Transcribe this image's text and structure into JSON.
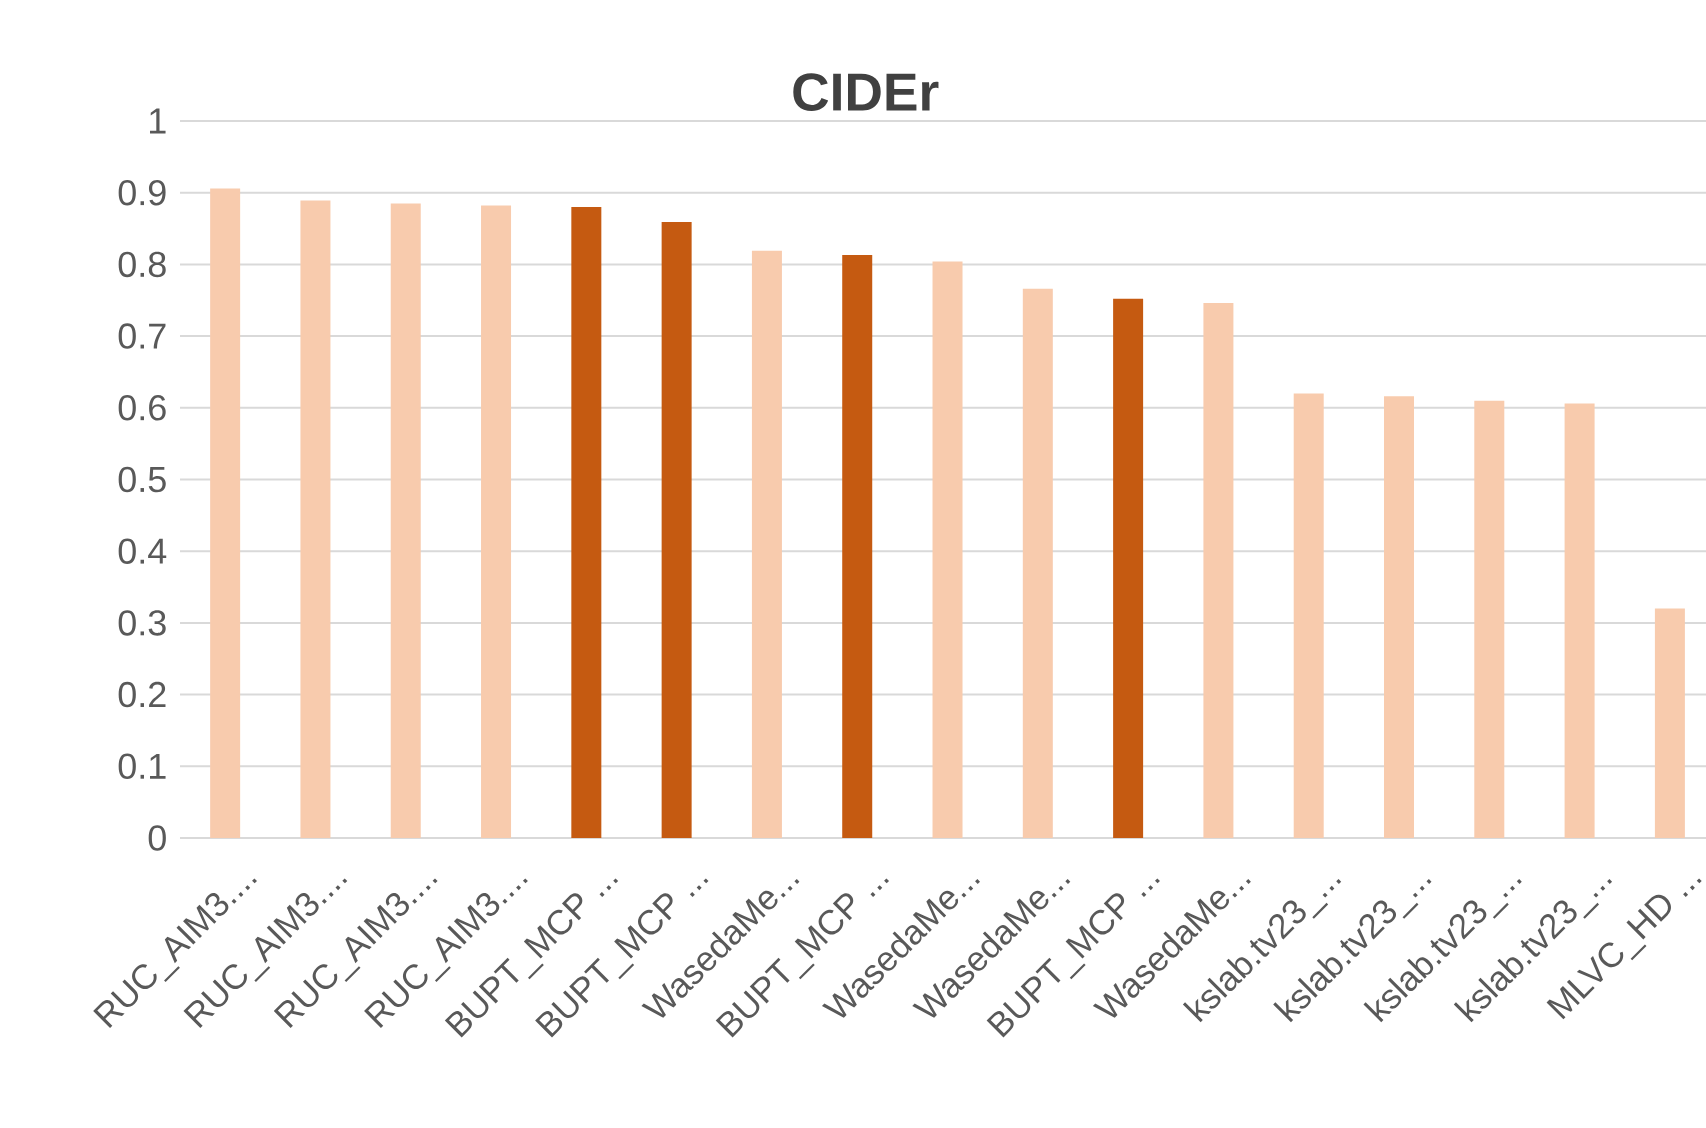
{
  "chart_data": {
    "type": "bar",
    "title": "CIDEr",
    "categories": [
      "RUC_AIM3....",
      "RUC_AIM3....",
      "RUC_AIM3....",
      "RUC_AIM3....",
      "BUPT_MCP ...",
      "BUPT_MCP ...",
      "WasedaMe...",
      "BUPT_MCP ...",
      "WasedaMe...",
      "WasedaMe...",
      "BUPT_MCP ...",
      "WasedaMe...",
      "kslab.tv23_...",
      "kslab.tv23_...",
      "kslab.tv23_...",
      "kslab.tv23_...",
      "MLVC_HD ..."
    ],
    "values": [
      0.906,
      0.889,
      0.885,
      0.882,
      0.88,
      0.859,
      0.819,
      0.813,
      0.804,
      0.766,
      0.752,
      0.746,
      0.62,
      0.616,
      0.61,
      0.606,
      0.32
    ],
    "colors": [
      "#f8cbad",
      "#f8cbad",
      "#f8cbad",
      "#f8cbad",
      "#c55a11",
      "#c55a11",
      "#f8cbad",
      "#c55a11",
      "#f8cbad",
      "#f8cbad",
      "#c55a11",
      "#f8cbad",
      "#f8cbad",
      "#f8cbad",
      "#f8cbad",
      "#f8cbad",
      "#f8cbad"
    ],
    "ylim": [
      0,
      1
    ],
    "yticks": [
      0,
      0.1,
      0.2,
      0.3,
      0.4,
      0.5,
      0.6,
      0.7,
      0.8,
      0.9,
      1
    ],
    "grid": "y"
  }
}
